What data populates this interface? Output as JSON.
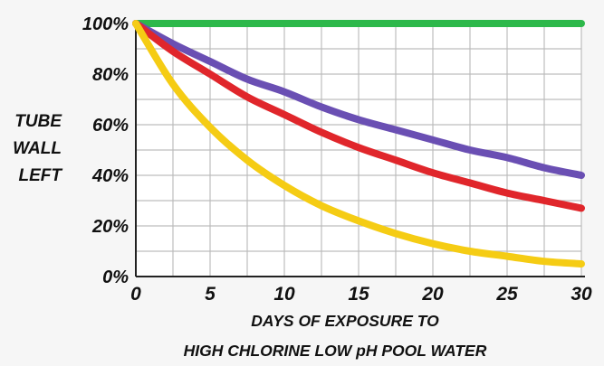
{
  "chart_data": {
    "type": "line",
    "title": "",
    "xlabel_lines": [
      "DAYS OF EXPOSURE TO",
      "HIGH CHLORINE LOW pH POOL WATER"
    ],
    "ylabel_lines": [
      "TUBE",
      "WALL",
      "LEFT"
    ],
    "x_ticks": [
      "0",
      "5",
      "10",
      "15",
      "20",
      "25",
      "30"
    ],
    "y_ticks": [
      "0%",
      "20%",
      "40%",
      "60%",
      "80%",
      "100%"
    ],
    "xlim": [
      0,
      30
    ],
    "ylim": [
      0,
      100
    ],
    "grid": true,
    "x": [
      0,
      2.5,
      5,
      7.5,
      10,
      12.5,
      15,
      17.5,
      20,
      22.5,
      25,
      27.5,
      30
    ],
    "series": [
      {
        "color": "#2db84a",
        "values": [
          100,
          100,
          100,
          100,
          100,
          100,
          100,
          100,
          100,
          100,
          100,
          100,
          100
        ]
      },
      {
        "color": "#6a4fb3",
        "values": [
          100,
          92,
          85,
          78,
          73,
          67,
          62,
          58,
          54,
          50,
          47,
          43,
          40
        ]
      },
      {
        "color": "#e0262b",
        "values": [
          100,
          89,
          80,
          71,
          64,
          57,
          51,
          46,
          41,
          37,
          33,
          30,
          27
        ]
      },
      {
        "color": "#f5cc14",
        "values": [
          100,
          76,
          59,
          46,
          36,
          28,
          22,
          17,
          13,
          10,
          8,
          6,
          5
        ]
      }
    ]
  }
}
